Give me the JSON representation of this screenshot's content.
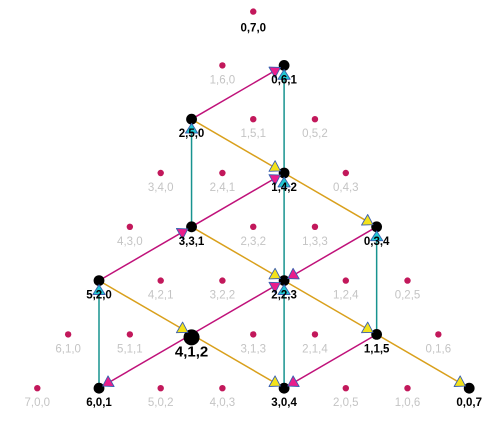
{
  "diagram": {
    "total": 7,
    "colors": {
      "teal_edge": "#17938f",
      "orange_edge": "#d9a01c",
      "magenta_edge": "#c0127a",
      "small_dot": "#c2185b",
      "big_dot": "#000000",
      "cyan_marker": "#22c8d2",
      "yellow_marker": "#f3e21a",
      "magenta_marker": "#e91e8c",
      "marker_outline": "#3a5fb0",
      "faint_label": "#c4c4c4"
    },
    "points": [
      {
        "label": "0,7,0",
        "style": "bold",
        "dot": "small"
      },
      {
        "label": "1,6,0",
        "style": "faint",
        "dot": "small"
      },
      {
        "label": "0,6,1",
        "style": "bold",
        "dot": "big"
      },
      {
        "label": "2,5,0",
        "style": "bold",
        "dot": "big"
      },
      {
        "label": "1,5,1",
        "style": "faint",
        "dot": "small"
      },
      {
        "label": "0,5,2",
        "style": "faint",
        "dot": "small"
      },
      {
        "label": "3,4,0",
        "style": "faint",
        "dot": "small"
      },
      {
        "label": "2,4,1",
        "style": "faint",
        "dot": "small"
      },
      {
        "label": "1,4,2",
        "style": "bold",
        "dot": "big"
      },
      {
        "label": "0,4,3",
        "style": "faint",
        "dot": "small"
      },
      {
        "label": "4,3,0",
        "style": "faint",
        "dot": "small"
      },
      {
        "label": "3,3,1",
        "style": "bold",
        "dot": "big"
      },
      {
        "label": "2,3,2",
        "style": "faint",
        "dot": "small"
      },
      {
        "label": "1,3,3",
        "style": "faint",
        "dot": "small"
      },
      {
        "label": "0,3,4",
        "style": "bold",
        "dot": "big"
      },
      {
        "label": "5,2,0",
        "style": "bold",
        "dot": "big"
      },
      {
        "label": "4,2,1",
        "style": "faint",
        "dot": "small"
      },
      {
        "label": "3,2,2",
        "style": "faint",
        "dot": "small"
      },
      {
        "label": "2,2,3",
        "style": "bold",
        "dot": "big"
      },
      {
        "label": "1,2,4",
        "style": "faint",
        "dot": "small"
      },
      {
        "label": "0,2,5",
        "style": "faint",
        "dot": "small"
      },
      {
        "label": "6,1,0",
        "style": "faint",
        "dot": "small"
      },
      {
        "label": "5,1,1",
        "style": "faint",
        "dot": "small"
      },
      {
        "label": "4,1,2",
        "style": "big",
        "dot": "bigger"
      },
      {
        "label": "3,1,3",
        "style": "faint",
        "dot": "small"
      },
      {
        "label": "2,1,4",
        "style": "faint",
        "dot": "small"
      },
      {
        "label": "1,1,5",
        "style": "bold",
        "dot": "big"
      },
      {
        "label": "0,1,6",
        "style": "faint",
        "dot": "small"
      },
      {
        "label": "7,0,0",
        "style": "faint",
        "dot": "small"
      },
      {
        "label": "6,0,1",
        "style": "bold",
        "dot": "big"
      },
      {
        "label": "5,0,2",
        "style": "faint",
        "dot": "small"
      },
      {
        "label": "4,0,3",
        "style": "faint",
        "dot": "small"
      },
      {
        "label": "3,0,4",
        "style": "bold",
        "dot": "big"
      },
      {
        "label": "2,0,5",
        "style": "faint",
        "dot": "small"
      },
      {
        "label": "1,0,6",
        "style": "faint",
        "dot": "small"
      },
      {
        "label": "0,0,7",
        "style": "bold",
        "dot": "big"
      }
    ],
    "edges": [
      {
        "from": "6,0,1",
        "to": "5,2,0",
        "color": "teal"
      },
      {
        "from": "5,2,0",
        "to": "3,3,1",
        "color": "magenta"
      },
      {
        "from": "3,3,1",
        "to": "2,5,0",
        "color": "teal"
      },
      {
        "from": "2,5,0",
        "to": "0,6,1",
        "color": "magenta"
      },
      {
        "from": "2,5,0",
        "to": "1,4,2",
        "color": "orange"
      },
      {
        "from": "1,4,2",
        "to": "0,6,1",
        "color": "teal"
      },
      {
        "from": "3,3,1",
        "to": "1,4,2",
        "color": "magenta"
      },
      {
        "from": "1,4,2",
        "to": "0,3,4",
        "color": "orange"
      },
      {
        "from": "0,3,4",
        "to": "2,2,3",
        "color": "magenta"
      },
      {
        "from": "2,2,3",
        "to": "1,4,2",
        "color": "teal"
      },
      {
        "from": "3,3,1",
        "to": "2,2,3",
        "color": "orange"
      },
      {
        "from": "5,2,0",
        "to": "4,1,2",
        "color": "orange"
      },
      {
        "from": "4,1,2",
        "to": "2,2,3",
        "color": "magenta"
      },
      {
        "from": "2,2,3",
        "to": "1,1,5",
        "color": "orange"
      },
      {
        "from": "1,1,5",
        "to": "0,3,4",
        "color": "teal"
      },
      {
        "from": "1,1,5",
        "to": "0,0,7",
        "color": "orange"
      },
      {
        "from": "4,1,2",
        "to": "3,0,4",
        "color": "orange"
      },
      {
        "from": "3,0,4",
        "to": "2,2,3",
        "color": "teal"
      },
      {
        "from": "1,1,5",
        "to": "3,0,4",
        "color": "magenta"
      },
      {
        "from": "4,1,2",
        "to": "6,0,1",
        "color": "magenta"
      }
    ]
  }
}
